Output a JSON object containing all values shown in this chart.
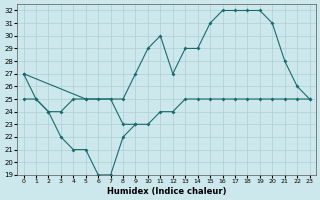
{
  "xlabel": "Humidex (Indice chaleur)",
  "xlim": [
    -0.5,
    23.5
  ],
  "ylim": [
    19,
    32.5
  ],
  "yticks": [
    19,
    20,
    21,
    22,
    23,
    24,
    25,
    26,
    27,
    28,
    29,
    30,
    31,
    32
  ],
  "xticks": [
    0,
    1,
    2,
    3,
    4,
    5,
    6,
    7,
    8,
    9,
    10,
    11,
    12,
    13,
    14,
    15,
    16,
    17,
    18,
    19,
    20,
    21,
    22,
    23
  ],
  "bg_color": "#cde8ec",
  "grid_color": "#aecfd4",
  "line_color": "#1a6b6b",
  "series": [
    {
      "x": [
        0,
        1,
        2,
        3,
        4,
        5,
        6,
        7,
        8,
        9
      ],
      "y": [
        27,
        25,
        24,
        22,
        21,
        21,
        19,
        19,
        22,
        23
      ]
    },
    {
      "x": [
        0,
        1,
        2,
        3,
        4,
        5,
        6,
        7,
        8,
        9,
        10,
        11,
        12,
        13,
        14,
        15,
        16,
        17,
        18,
        19,
        20,
        21,
        22,
        23
      ],
      "y": [
        25,
        25,
        24,
        24,
        25,
        25,
        25,
        25,
        23,
        23,
        23,
        24,
        24,
        25,
        25,
        25,
        25,
        25,
        25,
        25,
        25,
        25,
        25,
        25
      ]
    },
    {
      "x": [
        0,
        5,
        8,
        9,
        10,
        11,
        12,
        13,
        14,
        15,
        16,
        17,
        18,
        19,
        20,
        21,
        22,
        23
      ],
      "y": [
        27,
        25,
        25,
        27,
        29,
        30,
        27,
        29,
        29,
        31,
        32,
        32,
        32,
        32,
        31,
        28,
        26,
        25
      ]
    }
  ]
}
